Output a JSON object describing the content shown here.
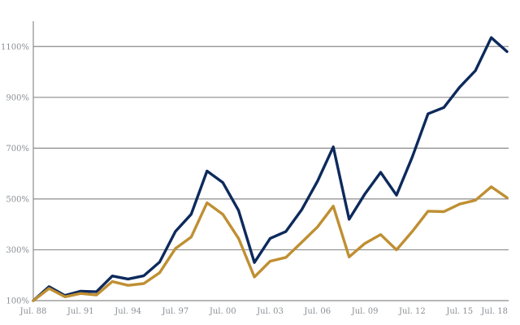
{
  "chart_data": {
    "type": "line",
    "title": "",
    "xlabel": "",
    "ylabel": "",
    "x_tick_labels": [
      "Jul. 88",
      "Jul. 91",
      "Jul. 94",
      "Jul. 97",
      "Jul. 00",
      "Jul. 03",
      "Jul. 06",
      "Jul. 09",
      "Jul. 12",
      "Jul. 15",
      "Jul. 18"
    ],
    "y_ticks": [
      {
        "value": 100,
        "label": "100%"
      },
      {
        "value": 300,
        "label": "300%"
      },
      {
        "value": 500,
        "label": "500%"
      },
      {
        "value": 700,
        "label": "700%"
      },
      {
        "value": 900,
        "label": "900%"
      },
      {
        "value": 1100,
        "label": "1100%"
      }
    ],
    "ylim": [
      100,
      1200
    ],
    "xlim": [
      1988.5,
      2018.5
    ],
    "grid": "horizontal",
    "x": [
      1988.5,
      1989.5,
      1990.5,
      1991.5,
      1992.5,
      1993.5,
      1994.5,
      1995.5,
      1996.5,
      1997.5,
      1998.5,
      1999.5,
      2000.5,
      2001.5,
      2002.5,
      2003.5,
      2004.5,
      2005.5,
      2006.5,
      2007.5,
      2008.5,
      2009.5,
      2010.5,
      2011.5,
      2012.5,
      2013.5,
      2014.5,
      2015.5,
      2016.5,
      2017.5,
      2018.5
    ],
    "series": [
      {
        "color": "#0d2a5c",
        "values": [
          100,
          155,
          120,
          137,
          135,
          197,
          185,
          198,
          252,
          372,
          440,
          610,
          565,
          455,
          250,
          345,
          372,
          458,
          570,
          705,
          420,
          520,
          605,
          515,
          665,
          835,
          860,
          940,
          1005,
          1135,
          1080
        ]
      },
      {
        "color": "#bf8f32",
        "values": [
          100,
          148,
          115,
          128,
          122,
          175,
          160,
          167,
          210,
          305,
          350,
          485,
          440,
          345,
          193,
          255,
          270,
          330,
          390,
          472,
          272,
          325,
          360,
          300,
          372,
          452,
          450,
          480,
          495,
          548,
          505
        ]
      }
    ]
  }
}
